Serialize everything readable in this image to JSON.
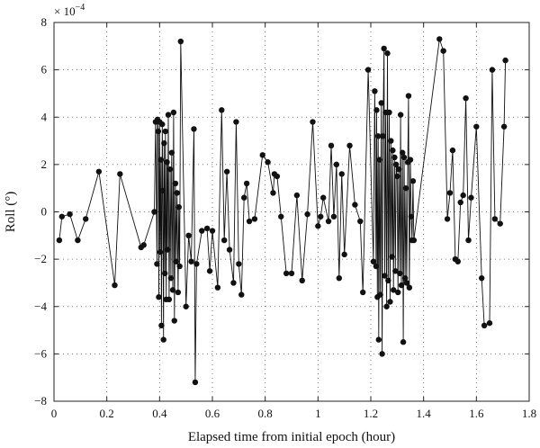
{
  "chart_data": {
    "type": "line",
    "xlabel": "Elapsed time from initial epoch (hour)",
    "ylabel": "Roll (°)",
    "y_multiplier": "× 10",
    "y_multiplier_exponent": "−4",
    "xlim": [
      0,
      1.8
    ],
    "ylim": [
      -8,
      8
    ],
    "x_ticks": [
      0,
      0.2,
      0.4,
      0.6,
      0.8,
      1.0,
      1.2,
      1.4,
      1.6,
      1.8
    ],
    "x_tick_labels": [
      "0",
      "0.2",
      "0.4",
      "0.6",
      "0.8",
      "1",
      "1.2",
      "1.4",
      "1.6",
      "1.8"
    ],
    "y_ticks": [
      -8,
      -6,
      -4,
      -2,
      0,
      2,
      4,
      6,
      8
    ],
    "y_tick_labels": [
      "−8",
      "−6",
      "−4",
      "−2",
      "0",
      "2",
      "4",
      "6",
      "8"
    ],
    "grid": "dotted",
    "marker": "filled-circle",
    "line_color": "#111111",
    "series": [
      {
        "x": [
          0.02,
          0.03,
          0.06,
          0.09,
          0.12,
          0.17,
          0.23,
          0.25,
          0.33,
          0.34,
          0.38,
          0.385,
          0.39,
          0.392,
          0.395,
          0.397,
          0.4,
          0.402,
          0.405,
          0.407,
          0.41,
          0.412,
          0.415,
          0.417,
          0.42,
          0.422,
          0.425,
          0.428,
          0.43,
          0.433,
          0.436,
          0.44,
          0.443,
          0.446,
          0.45,
          0.453,
          0.456,
          0.46,
          0.463,
          0.466,
          0.47,
          0.473,
          0.476,
          0.48,
          0.5,
          0.51,
          0.52,
          0.53,
          0.535,
          0.54,
          0.56,
          0.58,
          0.59,
          0.6,
          0.62,
          0.635,
          0.645,
          0.655,
          0.665,
          0.68,
          0.69,
          0.7,
          0.71,
          0.72,
          0.73,
          0.74,
          0.76,
          0.79,
          0.81,
          0.83,
          0.835,
          0.845,
          0.86,
          0.88,
          0.9,
          0.92,
          0.94,
          0.96,
          0.98,
          1.0,
          1.01,
          1.02,
          1.04,
          1.05,
          1.06,
          1.07,
          1.08,
          1.09,
          1.1,
          1.12,
          1.14,
          1.16,
          1.17,
          1.19,
          1.21,
          1.215,
          1.22,
          1.222,
          1.225,
          1.228,
          1.23,
          1.233,
          1.236,
          1.24,
          1.243,
          1.246,
          1.25,
          1.253,
          1.256,
          1.26,
          1.263,
          1.266,
          1.27,
          1.273,
          1.276,
          1.28,
          1.283,
          1.286,
          1.29,
          1.293,
          1.296,
          1.3,
          1.303,
          1.306,
          1.31,
          1.313,
          1.316,
          1.32,
          1.323,
          1.326,
          1.33,
          1.333,
          1.336,
          1.34,
          1.343,
          1.346,
          1.35,
          1.353,
          1.356,
          1.36,
          1.363,
          1.46,
          1.475,
          1.49,
          1.5,
          1.51,
          1.52,
          1.53,
          1.54,
          1.55,
          1.56,
          1.57,
          1.58,
          1.6,
          1.62,
          1.63,
          1.65,
          1.66,
          1.67,
          1.69,
          1.705,
          1.71
        ],
        "y": [
          -1.2,
          -0.2,
          -0.1,
          -1.2,
          -0.3,
          1.7,
          -3.1,
          1.6,
          -1.5,
          -1.4,
          0.0,
          3.8,
          -2.2,
          3.9,
          3.4,
          -3.6,
          3.8,
          -1.7,
          2.2,
          -4.8,
          3.7,
          0.9,
          -5.4,
          2.9,
          -2.6,
          3.4,
          -3.7,
          2.1,
          -1.6,
          4.1,
          -3.7,
          1.8,
          -2.8,
          2.5,
          -3.3,
          4.2,
          -4.6,
          1.2,
          -2.1,
          0.8,
          -3.4,
          0.2,
          -2.3,
          7.2,
          -4.0,
          -1.0,
          -2.1,
          3.5,
          -7.2,
          -2.2,
          -0.8,
          -0.7,
          -2.5,
          -0.8,
          -3.2,
          4.3,
          -1.2,
          1.7,
          -1.6,
          -3.0,
          3.8,
          -2.2,
          -3.5,
          0.6,
          1.2,
          -0.4,
          -0.3,
          2.4,
          2.1,
          0.8,
          1.6,
          1.5,
          -0.2,
          -2.6,
          -2.6,
          0.7,
          -2.9,
          -0.1,
          3.8,
          -0.6,
          -0.2,
          0.6,
          -0.4,
          2.8,
          -0.2,
          2.0,
          -2.8,
          1.6,
          -1.8,
          2.8,
          0.3,
          -0.4,
          -3.4,
          6.0,
          -2.1,
          5.1,
          -2.3,
          4.3,
          -3.6,
          3.2,
          -5.4,
          2.2,
          -3.5,
          4.6,
          -6.0,
          3.2,
          6.9,
          -2.7,
          4.2,
          -4.0,
          6.7,
          -2.9,
          4.2,
          -3.8,
          3.0,
          -1.9,
          2.6,
          -3.3,
          2.3,
          -2.5,
          2.0,
          1.5,
          -3.4,
          1.8,
          -2.6,
          4.1,
          -3.1,
          2.5,
          -5.5,
          2.3,
          -2.8,
          1.0,
          -3.0,
          2.1,
          4.9,
          -3.2,
          2.2,
          -0.2,
          -1.2,
          1.3,
          -1.2,
          7.3,
          6.8,
          -0.3,
          0.8,
          2.6,
          -2.0,
          -2.1,
          0.4,
          0.7,
          4.8,
          -1.2,
          0.6,
          3.6,
          -2.8,
          -4.8,
          -4.7,
          6.0,
          -0.3,
          -0.5,
          3.6,
          6.4
        ]
      }
    ]
  }
}
